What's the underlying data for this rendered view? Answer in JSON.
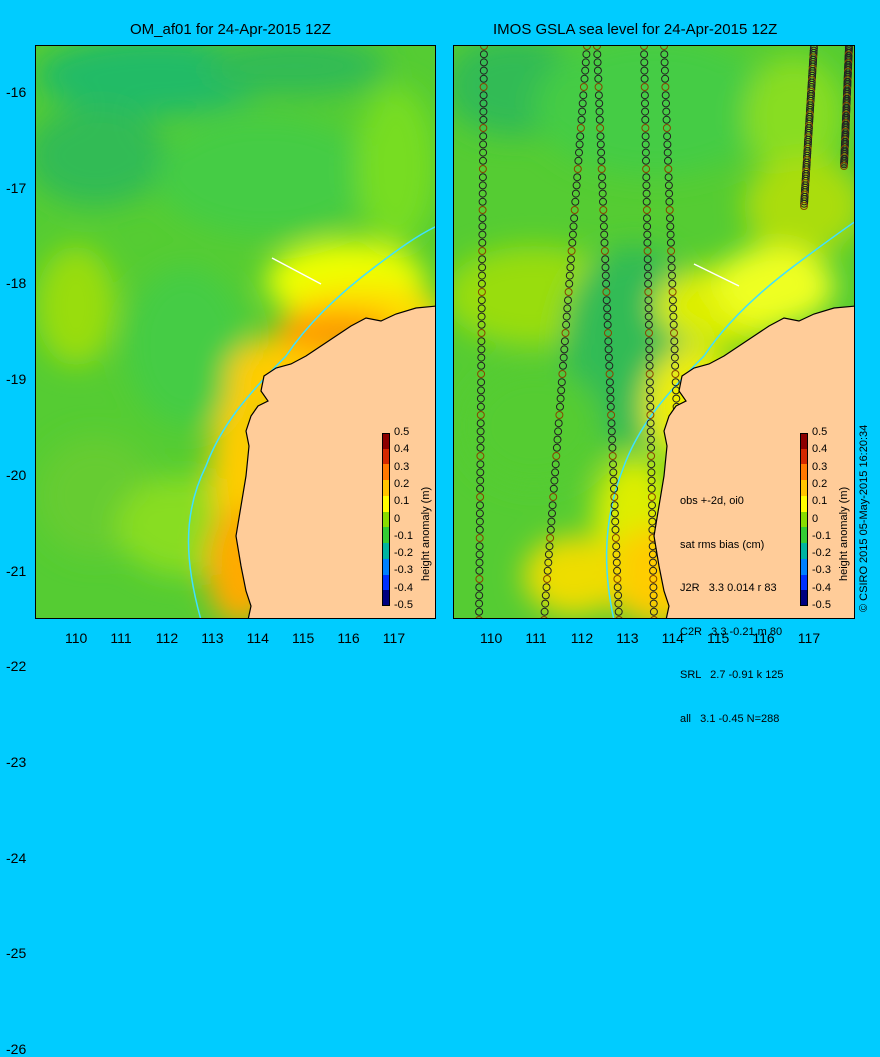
{
  "left_panel": {
    "title": "OM_af01 for 24-Apr-2015 12Z"
  },
  "right_panel": {
    "title": "IMOS GSLA sea level  for 24-Apr-2015 12Z",
    "stats": {
      "line1": "obs +-2d, oi0",
      "line2": "sat rms bias (cm)",
      "line3": "J2R   3.3 0.014 r 83",
      "line4": "C2R   3.3 -0.21 m 80",
      "line5": "SRL   2.7 -0.91 k 125",
      "line6": "all   3.1 -0.45 N=288"
    }
  },
  "y_axis_labels": [
    "-16",
    "-17",
    "-18",
    "-19",
    "-20",
    "-21",
    "-22",
    "-23",
    "-24",
    "-25",
    "-26"
  ],
  "x_axis_labels": [
    "110",
    "111",
    "112",
    "113",
    "114",
    "115",
    "116",
    "117"
  ],
  "colorbar": {
    "title": "height anomaly (m)",
    "ticks": [
      "0.5",
      "0.4",
      "0.3",
      "0.2",
      "0.1",
      "0",
      "-0.1",
      "-0.2",
      "-0.3",
      "-0.4",
      "-0.5"
    ],
    "colors": [
      "#8b0000",
      "#d22800",
      "#ff7800",
      "#ffc400",
      "#ffff00",
      "#88dd00",
      "#33cc33",
      "#00b4a0",
      "#0080ff",
      "#0030ff",
      "#000080"
    ]
  },
  "credit": "© CSIRO 2015   05-May-2015 16:20:34",
  "colors": {
    "background": "#00ccff",
    "land": "#ffcc99",
    "coast_line": "#000000",
    "shelf_line": "#40e0ff"
  }
}
